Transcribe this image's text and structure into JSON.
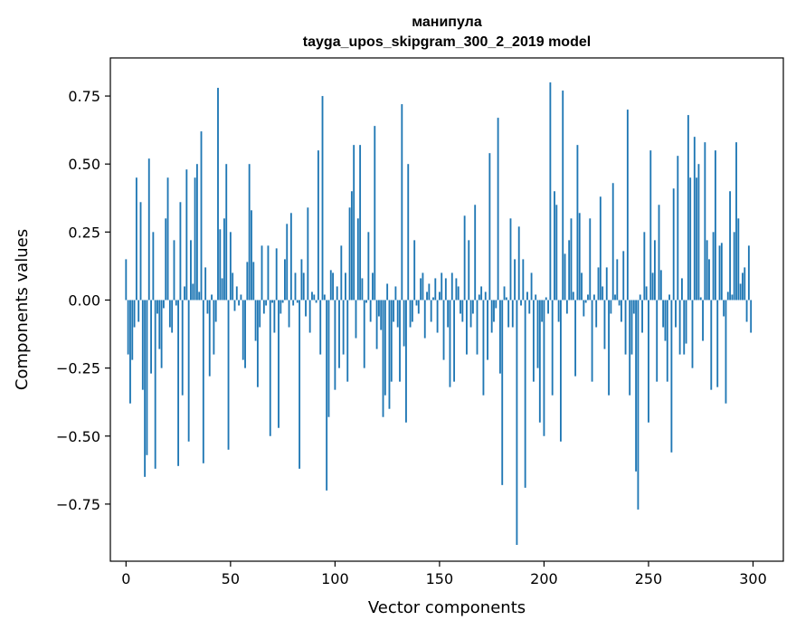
{
  "chart_data": {
    "type": "bar",
    "title": "манипула",
    "subtitle": "tayga_upos_skipgram_300_2_2019 model",
    "xlabel": "Vector components",
    "ylabel": "Components values",
    "xlim": [
      -7.5,
      314.5
    ],
    "ylim": [
      -0.96,
      0.89
    ],
    "xticks": [
      0,
      50,
      100,
      150,
      200,
      250,
      300
    ],
    "xtick_labels": [
      "0",
      "50",
      "100",
      "150",
      "200",
      "250",
      "300"
    ],
    "yticks": [
      0.75,
      0.5,
      0.25,
      0.0,
      -0.25,
      -0.5,
      -0.75
    ],
    "ytick_labels": [
      "0.75",
      "0.50",
      "0.25",
      "0.00",
      "−0.25",
      "−0.50",
      "−0.75"
    ],
    "bar_color": "#1f77b4",
    "grid": false,
    "legend": "none",
    "x": [
      0,
      1,
      2,
      3,
      4,
      5,
      6,
      7,
      8,
      9,
      10,
      11,
      12,
      13,
      14,
      15,
      16,
      17,
      18,
      19,
      20,
      21,
      22,
      23,
      24,
      25,
      26,
      27,
      28,
      29,
      30,
      31,
      32,
      33,
      34,
      35,
      36,
      37,
      38,
      39,
      40,
      41,
      42,
      43,
      44,
      45,
      46,
      47,
      48,
      49,
      50,
      51,
      52,
      53,
      54,
      55,
      56,
      57,
      58,
      59,
      60,
      61,
      62,
      63,
      64,
      65,
      66,
      67,
      68,
      69,
      70,
      71,
      72,
      73,
      74,
      75,
      76,
      77,
      78,
      79,
      80,
      81,
      82,
      83,
      84,
      85,
      86,
      87,
      88,
      89,
      90,
      91,
      92,
      93,
      94,
      95,
      96,
      97,
      98,
      99,
      100,
      101,
      102,
      103,
      104,
      105,
      106,
      107,
      108,
      109,
      110,
      111,
      112,
      113,
      114,
      115,
      116,
      117,
      118,
      119,
      120,
      121,
      122,
      123,
      124,
      125,
      126,
      127,
      128,
      129,
      130,
      131,
      132,
      133,
      134,
      135,
      136,
      137,
      138,
      139,
      140,
      141,
      142,
      143,
      144,
      145,
      146,
      147,
      148,
      149,
      150,
      151,
      152,
      153,
      154,
      155,
      156,
      157,
      158,
      159,
      160,
      161,
      162,
      163,
      164,
      165,
      166,
      167,
      168,
      169,
      170,
      171,
      172,
      173,
      174,
      175,
      176,
      177,
      178,
      179,
      180,
      181,
      182,
      183,
      184,
      185,
      186,
      187,
      188,
      189,
      190,
      191,
      192,
      193,
      194,
      195,
      196,
      197,
      198,
      199,
      200,
      201,
      202,
      203,
      204,
      205,
      206,
      207,
      208,
      209,
      210,
      211,
      212,
      213,
      214,
      215,
      216,
      217,
      218,
      219,
      220,
      221,
      222,
      223,
      224,
      225,
      226,
      227,
      228,
      229,
      230,
      231,
      232,
      233,
      234,
      235,
      236,
      237,
      238,
      239,
      240,
      241,
      242,
      243,
      244,
      245,
      246,
      247,
      248,
      249,
      250,
      251,
      252,
      253,
      254,
      255,
      256,
      257,
      258,
      259,
      260,
      261,
      262,
      263,
      264,
      265,
      266,
      267,
      268,
      269,
      270,
      271,
      272,
      273,
      274,
      275,
      276,
      277,
      278,
      279,
      280,
      281,
      282,
      283,
      284,
      285,
      286,
      287,
      288,
      289,
      290,
      291,
      292,
      293,
      294,
      295,
      296,
      297,
      298,
      299
    ],
    "values": [
      0.15,
      -0.2,
      -0.38,
      -0.22,
      -0.1,
      0.45,
      -0.08,
      0.36,
      -0.33,
      -0.65,
      -0.57,
      0.52,
      -0.27,
      0.25,
      -0.62,
      -0.05,
      -0.18,
      -0.25,
      -0.03,
      0.3,
      0.45,
      -0.1,
      -0.12,
      0.22,
      -0.02,
      -0.61,
      0.36,
      -0.35,
      0.05,
      0.48,
      -0.52,
      0.22,
      0.06,
      0.45,
      0.5,
      0.03,
      0.62,
      -0.6,
      0.12,
      -0.05,
      -0.28,
      0.02,
      -0.2,
      -0.08,
      0.78,
      0.26,
      0.08,
      0.3,
      0.5,
      -0.55,
      0.25,
      0.1,
      -0.04,
      0.05,
      -0.02,
      0.02,
      -0.22,
      -0.25,
      0.14,
      0.5,
      0.33,
      0.14,
      -0.15,
      -0.32,
      -0.1,
      0.2,
      -0.05,
      -0.02,
      0.2,
      -0.5,
      -0.01,
      -0.12,
      0.19,
      -0.47,
      -0.05,
      -0.01,
      0.15,
      0.28,
      -0.1,
      0.32,
      -0.02,
      0.1,
      -0.01,
      -0.62,
      0.15,
      0.1,
      -0.06,
      0.34,
      -0.12,
      0.03,
      0.02,
      -0.01,
      0.55,
      -0.2,
      0.75,
      0.02,
      -0.7,
      -0.43,
      0.11,
      0.1,
      -0.33,
      0.05,
      -0.25,
      0.2,
      -0.2,
      0.1,
      -0.3,
      0.34,
      0.4,
      0.57,
      -0.14,
      0.3,
      0.57,
      0.08,
      -0.25,
      -0.01,
      0.25,
      -0.08,
      0.1,
      0.64,
      -0.18,
      -0.06,
      -0.11,
      -0.43,
      -0.35,
      0.06,
      -0.4,
      -0.3,
      -0.08,
      0.05,
      -0.1,
      -0.3,
      0.72,
      -0.17,
      -0.45,
      0.5,
      -0.1,
      -0.08,
      0.22,
      -0.02,
      -0.05,
      0.08,
      0.1,
      -0.14,
      0.03,
      0.06,
      -0.08,
      0.01,
      0.08,
      -0.12,
      0.03,
      0.1,
      -0.22,
      0.08,
      -0.1,
      -0.32,
      0.1,
      -0.3,
      0.08,
      0.05,
      -0.05,
      -0.08,
      0.31,
      -0.2,
      0.22,
      -0.1,
      -0.05,
      0.35,
      -0.2,
      0.02,
      0.05,
      -0.35,
      0.03,
      -0.22,
      0.54,
      -0.12,
      -0.08,
      -0.03,
      0.67,
      -0.27,
      -0.68,
      0.05,
      0.01,
      -0.1,
      0.3,
      -0.1,
      0.15,
      -0.9,
      0.27,
      -0.02,
      0.15,
      -0.69,
      0.03,
      -0.05,
      0.1,
      -0.3,
      0.02,
      -0.25,
      -0.45,
      -0.08,
      -0.5,
      0.01,
      -0.05,
      0.8,
      -0.35,
      0.4,
      0.35,
      -0.08,
      -0.52,
      0.77,
      0.17,
      -0.05,
      0.22,
      0.3,
      0.03,
      -0.28,
      0.57,
      0.32,
      0.1,
      -0.06,
      -0.01,
      0.02,
      0.3,
      -0.3,
      0.02,
      -0.1,
      0.12,
      0.38,
      0.05,
      -0.18,
      0.12,
      -0.35,
      -0.05,
      0.43,
      0.02,
      0.15,
      -0.02,
      -0.08,
      0.18,
      -0.2,
      0.7,
      -0.35,
      -0.2,
      -0.05,
      -0.63,
      -0.77,
      0.02,
      -0.12,
      0.25,
      0.05,
      -0.45,
      0.55,
      0.1,
      0.22,
      -0.3,
      0.35,
      0.11,
      -0.1,
      -0.15,
      -0.3,
      0.02,
      -0.56,
      0.41,
      -0.1,
      0.53,
      -0.2,
      0.08,
      -0.2,
      -0.16,
      0.68,
      0.45,
      -0.25,
      0.6,
      0.45,
      0.5,
      0.01,
      -0.15,
      0.58,
      0.22,
      0.15,
      -0.33,
      0.25,
      0.55,
      -0.32,
      0.2,
      0.21,
      -0.06,
      -0.38,
      0.03,
      0.4,
      0.02,
      0.25,
      0.58,
      0.3,
      0.06,
      0.1,
      0.12,
      -0.08,
      0.2,
      -0.12
    ]
  }
}
